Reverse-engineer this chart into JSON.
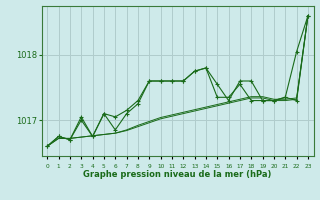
{
  "title": "Graphe pression niveau de la mer (hPa)",
  "bg_color": "#ceeaea",
  "grid_color": "#b0cccc",
  "line_color": "#1a6b1a",
  "xlim": [
    -0.5,
    23.5
  ],
  "ylim": [
    1016.45,
    1018.75
  ],
  "yticks": [
    1017,
    1018
  ],
  "xticks": [
    0,
    1,
    2,
    3,
    4,
    5,
    6,
    7,
    8,
    9,
    10,
    11,
    12,
    13,
    14,
    15,
    16,
    17,
    18,
    19,
    20,
    21,
    22,
    23
  ],
  "series_volatile": [
    1016.6,
    1016.75,
    1016.7,
    1017.0,
    1016.75,
    1017.1,
    1017.05,
    1017.15,
    1017.3,
    1017.6,
    1017.6,
    1017.6,
    1017.6,
    1017.75,
    1017.8,
    1017.55,
    1017.3,
    1017.6,
    1017.6,
    1017.3,
    1017.3,
    1017.35,
    1018.05,
    1018.6
  ],
  "series_zigzag": [
    1016.6,
    1016.75,
    1016.7,
    1017.05,
    1016.75,
    1017.1,
    1016.85,
    1017.1,
    1017.25,
    1017.6,
    1017.6,
    1017.6,
    1017.6,
    1017.75,
    1017.8,
    1017.35,
    1017.35,
    1017.55,
    1017.3,
    1017.3,
    1017.3,
    1017.35,
    1017.3,
    1018.6
  ],
  "series_smooth1": [
    1016.6,
    1016.72,
    1016.72,
    1016.74,
    1016.76,
    1016.78,
    1016.8,
    1016.85,
    1016.92,
    1016.98,
    1017.04,
    1017.08,
    1017.12,
    1017.16,
    1017.2,
    1017.24,
    1017.28,
    1017.32,
    1017.36,
    1017.36,
    1017.32,
    1017.32,
    1017.34,
    1018.6
  ],
  "series_smooth2": [
    1016.6,
    1016.72,
    1016.72,
    1016.74,
    1016.76,
    1016.78,
    1016.8,
    1016.84,
    1016.9,
    1016.96,
    1017.02,
    1017.06,
    1017.1,
    1017.14,
    1017.18,
    1017.22,
    1017.26,
    1017.3,
    1017.34,
    1017.34,
    1017.3,
    1017.3,
    1017.32,
    1018.6
  ]
}
